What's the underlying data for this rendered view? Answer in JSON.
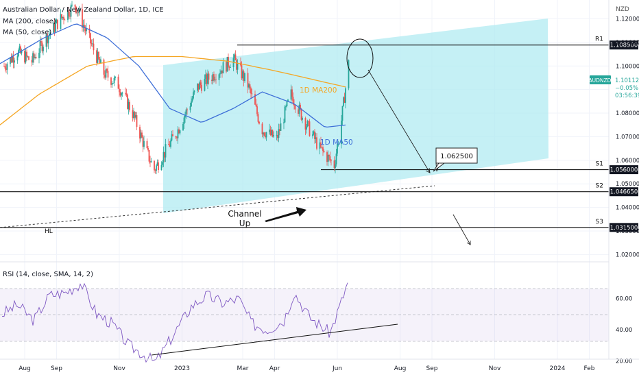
{
  "header": {
    "symbol": "Australian Dollar / New Zealand Dollar, 1D, ICE",
    "ma200": "MA (200, close)",
    "ma50": "MA (50, close)",
    "rsi": "RSI (14, close, SMA, 14, 2)"
  },
  "axis": {
    "currency": "NZD",
    "y_ticks": [
      "1.120000",
      "1.110000",
      "1.100000",
      "1.090000",
      "1.080000",
      "1.070000",
      "1.060000",
      "1.050000",
      "1.040000",
      "1.030000",
      "1.020000"
    ],
    "rsi_ticks": [
      "60.00",
      "40.00",
      "20.00"
    ],
    "x_ticks": [
      "Aug",
      "Sep",
      "Nov",
      "2023",
      "Mar",
      "Apr",
      "Jun",
      "Aug",
      "Sep",
      "Nov",
      "2024",
      "Feb"
    ]
  },
  "price_box": {
    "symbol": "AUDNZD",
    "price": "1.101120",
    "change": "−0.05%",
    "timer": "03:56:39"
  },
  "levels": [
    {
      "label": "R1",
      "value": "1.108900",
      "price": 1.1089
    },
    {
      "label": "S1",
      "value": "1.056000",
      "price": 1.056
    },
    {
      "label": "S2",
      "value": "1.046650",
      "price": 1.04665
    },
    {
      "label": "S3",
      "value": "1.031500",
      "price": 1.0315
    }
  ],
  "annotations": {
    "ma200_label": "1D MA200",
    "ma50_label": "1D MA50",
    "channel_label": "Channel Up",
    "target_label": "1.062500",
    "hl_label": "HL"
  },
  "colors": {
    "up": "#26a69a",
    "down": "#ef5350",
    "ma200": "#f5a623",
    "ma50": "#3e6fd8",
    "channel": "#b2ebf2",
    "rsi": "#7e57c2",
    "price_box": "#26a69a"
  },
  "chart_data": [
    {
      "type": "candlestick",
      "title": "Australian Dollar / New Zealand Dollar, 1D, ICE",
      "ylim": [
        1.014,
        1.128
      ],
      "xlim": [
        "2022-07-08",
        "2024-02-20"
      ],
      "series": [
        {
          "name": "AUDNZD",
          "close_path": [
            [
              "2022-07-12",
              1.1
            ],
            [
              "2022-07-25",
              1.106
            ],
            [
              "2022-08-08",
              1.102
            ],
            [
              "2022-08-22",
              1.112
            ],
            [
              "2022-09-05",
              1.12
            ],
            [
              "2022-09-19",
              1.126
            ],
            [
              "2022-10-03",
              1.111
            ],
            [
              "2022-10-17",
              1.097
            ],
            [
              "2022-10-31",
              1.092
            ],
            [
              "2022-11-14",
              1.08
            ],
            [
              "2022-11-28",
              1.063
            ],
            [
              "2022-12-05",
              1.056
            ],
            [
              "2022-12-12",
              1.061
            ],
            [
              "2022-12-27",
              1.072
            ],
            [
              "2023-01-16",
              1.091
            ],
            [
              "2023-02-06",
              1.098
            ],
            [
              "2023-02-20",
              1.103
            ],
            [
              "2023-03-06",
              1.092
            ],
            [
              "2023-03-20",
              1.073
            ],
            [
              "2023-04-03",
              1.069
            ],
            [
              "2023-04-17",
              1.088
            ],
            [
              "2023-05-01",
              1.076
            ],
            [
              "2023-05-15",
              1.065
            ],
            [
              "2023-05-29",
              1.058
            ],
            [
              "2023-06-05",
              1.077
            ],
            [
              "2023-06-12",
              1.101
            ]
          ]
        },
        {
          "name": "MA (200, close)",
          "points": [
            [
              "2022-07-08",
              1.075
            ],
            [
              "2022-08-15",
              1.088
            ],
            [
              "2022-10-01",
              1.1
            ],
            [
              "2022-11-15",
              1.104
            ],
            [
              "2023-01-01",
              1.104
            ],
            [
              "2023-02-15",
              1.102
            ],
            [
              "2023-04-01",
              1.098
            ],
            [
              "2023-06-10",
              1.091
            ]
          ]
        },
        {
          "name": "MA (50, close)",
          "points": [
            [
              "2022-07-08",
              1.101
            ],
            [
              "2022-08-20",
              1.112
            ],
            [
              "2022-09-20",
              1.118
            ],
            [
              "2022-10-20",
              1.112
            ],
            [
              "2022-11-20",
              1.1
            ],
            [
              "2022-12-20",
              1.082
            ],
            [
              "2023-01-20",
              1.076
            ],
            [
              "2023-02-20",
              1.082
            ],
            [
              "2023-03-20",
              1.089
            ],
            [
              "2023-04-20",
              1.084
            ],
            [
              "2023-05-20",
              1.074
            ],
            [
              "2023-06-10",
              1.075
            ]
          ]
        }
      ]
    },
    {
      "type": "line",
      "title": "RSI (14, close, SMA, 14, 2)",
      "ylim": [
        15,
        80
      ],
      "series": [
        {
          "name": "RSI",
          "points": [
            [
              "2022-07-10",
              50
            ],
            [
              "2022-07-25",
              56
            ],
            [
              "2022-08-10",
              46
            ],
            [
              "2022-08-25",
              62
            ],
            [
              "2022-09-10",
              64
            ],
            [
              "2022-09-25",
              70
            ],
            [
              "2022-10-10",
              50
            ],
            [
              "2022-10-25",
              44
            ],
            [
              "2022-11-10",
              30
            ],
            [
              "2022-11-25",
              24
            ],
            [
              "2022-12-06",
              19
            ],
            [
              "2022-12-20",
              33
            ],
            [
              "2023-01-10",
              55
            ],
            [
              "2023-01-25",
              62
            ],
            [
              "2023-02-10",
              57
            ],
            [
              "2023-02-25",
              60
            ],
            [
              "2023-03-10",
              44
            ],
            [
              "2023-03-25",
              40
            ],
            [
              "2023-04-10",
              46
            ],
            [
              "2023-04-20",
              64
            ],
            [
              "2023-05-05",
              48
            ],
            [
              "2023-05-25",
              38
            ],
            [
              "2023-06-05",
              58
            ],
            [
              "2023-06-12",
              72
            ]
          ]
        }
      ]
    }
  ]
}
